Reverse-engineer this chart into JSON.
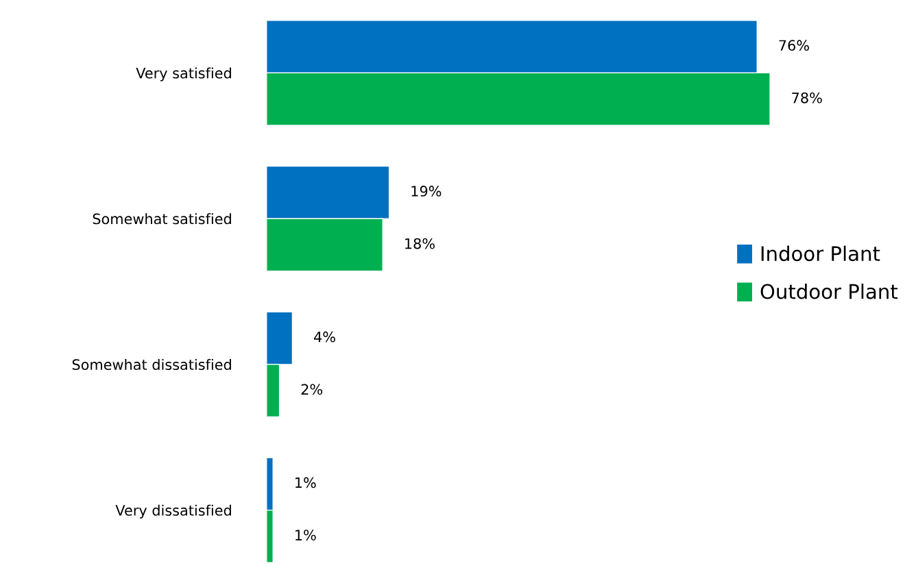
{
  "chart_data": {
    "type": "bar",
    "orientation": "horizontal",
    "categories": [
      "Very satisfied",
      "Somewhat satisfied",
      "Somewhat dissatisfied",
      "Very dissatisfied"
    ],
    "series": [
      {
        "name": "Indoor Plant",
        "color": "#0070c0",
        "values": [
          76,
          19,
          4,
          1
        ],
        "value_labels": [
          "76%",
          "19%",
          "4%",
          "1%"
        ]
      },
      {
        "name": "Outdoor Plant",
        "color": "#00b050",
        "values": [
          78,
          18,
          2,
          1
        ],
        "value_labels": [
          "78%",
          "18%",
          "2%",
          "1%"
        ]
      }
    ],
    "legend": "right",
    "grid": false
  }
}
